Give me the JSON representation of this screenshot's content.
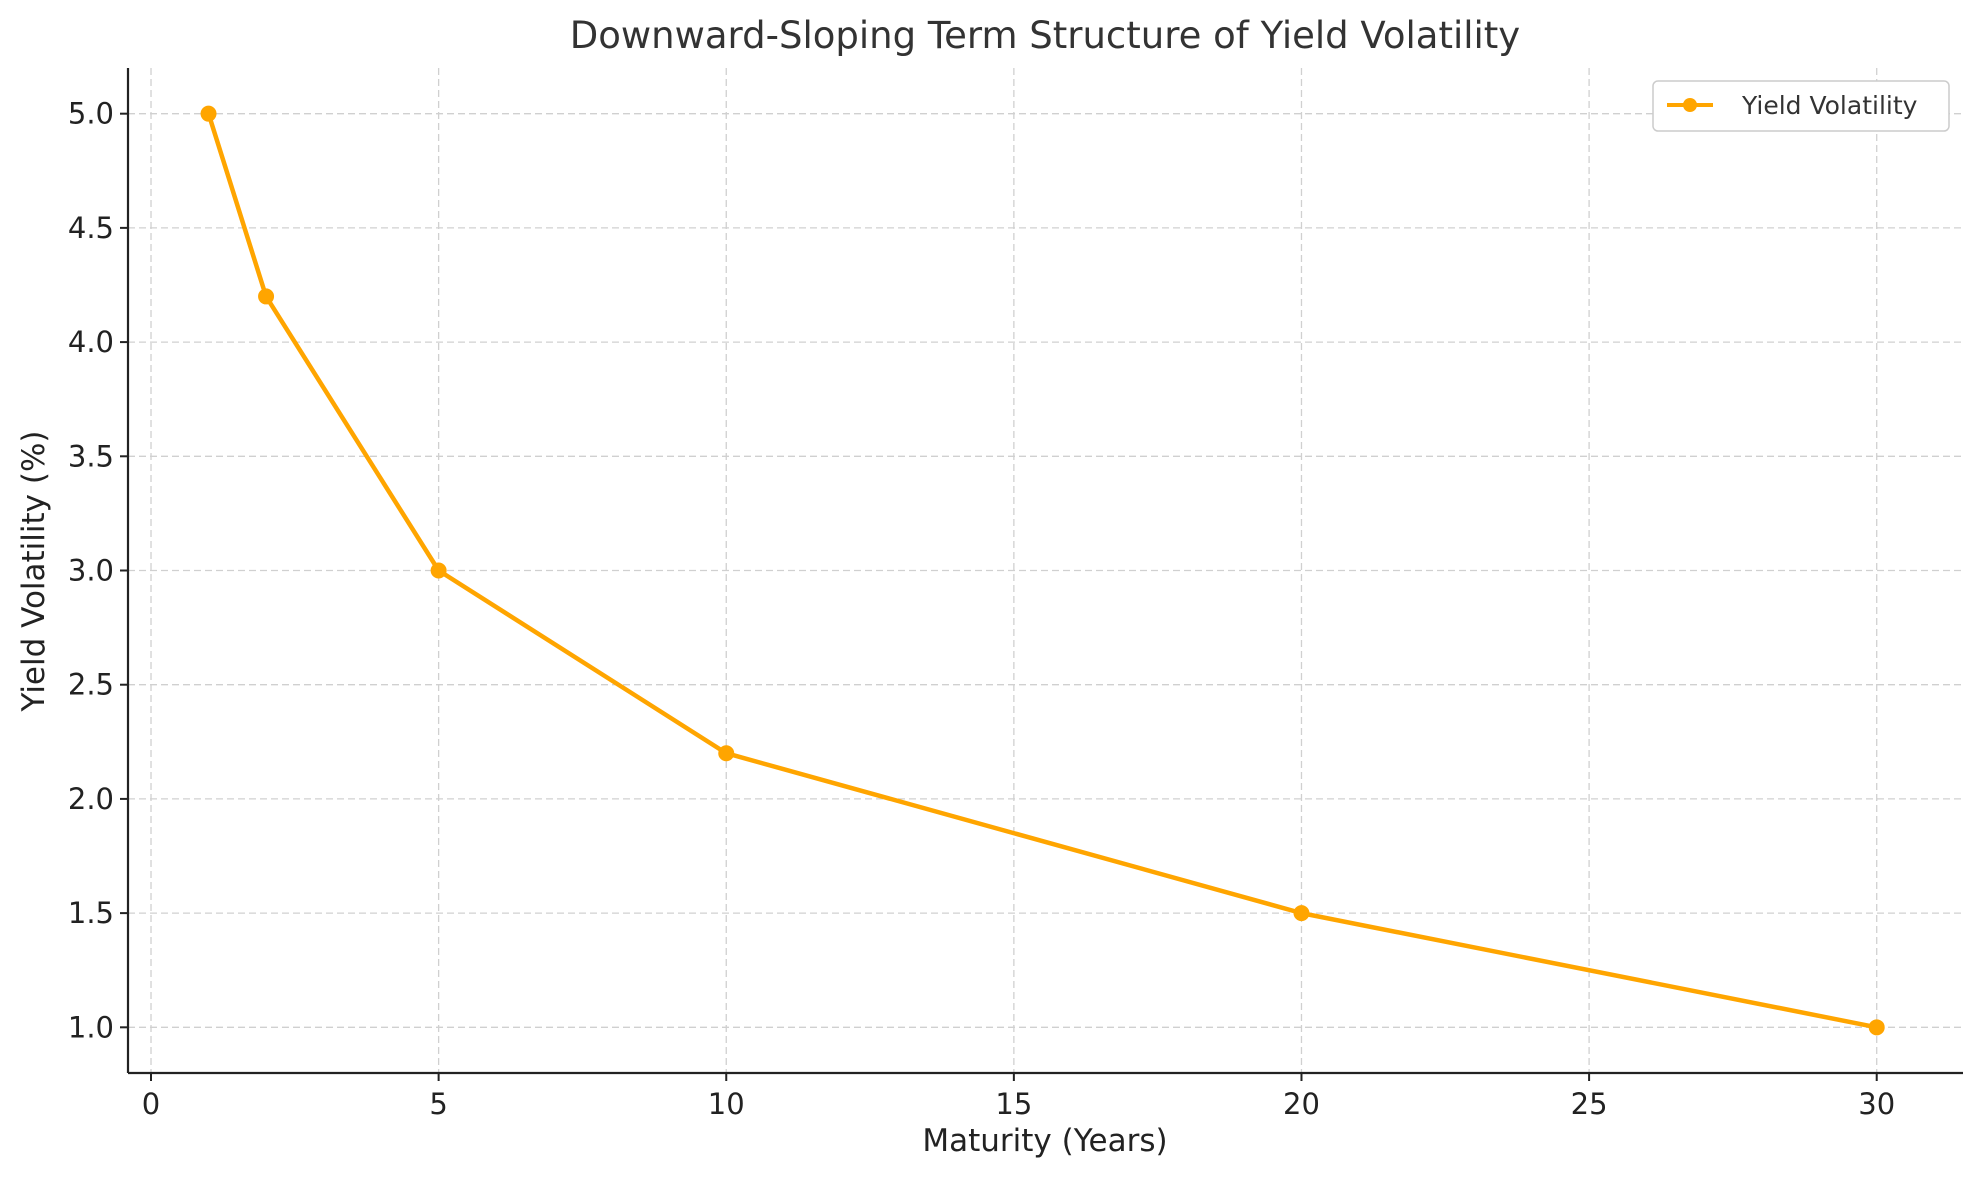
{
  "chart_data": {
    "type": "line",
    "title": "Downward-Sloping Term Structure of Yield Volatility",
    "xlabel": "Maturity (Years)",
    "ylabel": "Yield Volatility (%)",
    "xlim": [
      -0.4,
      31.5
    ],
    "ylim": [
      0.8,
      5.2
    ],
    "xticks": [
      0,
      5,
      10,
      15,
      20,
      25,
      30
    ],
    "xtick_labels": [
      "0",
      "5",
      "10",
      "15",
      "20",
      "25",
      "30"
    ],
    "yticks": [
      1.0,
      1.5,
      2.0,
      2.5,
      3.0,
      3.5,
      4.0,
      4.5,
      5.0
    ],
    "ytick_labels": [
      "1.0",
      "1.5",
      "2.0",
      "2.5",
      "3.0",
      "3.5",
      "4.0",
      "4.5",
      "5.0"
    ],
    "grid": true,
    "legend_position": "top-right",
    "series": [
      {
        "name": "Yield Volatility",
        "color": "#FFA500",
        "marker": "circle",
        "x": [
          1,
          2,
          5,
          10,
          20,
          30
        ],
        "y": [
          5.0,
          4.2,
          3.0,
          2.2,
          1.5,
          1.0
        ]
      }
    ]
  }
}
